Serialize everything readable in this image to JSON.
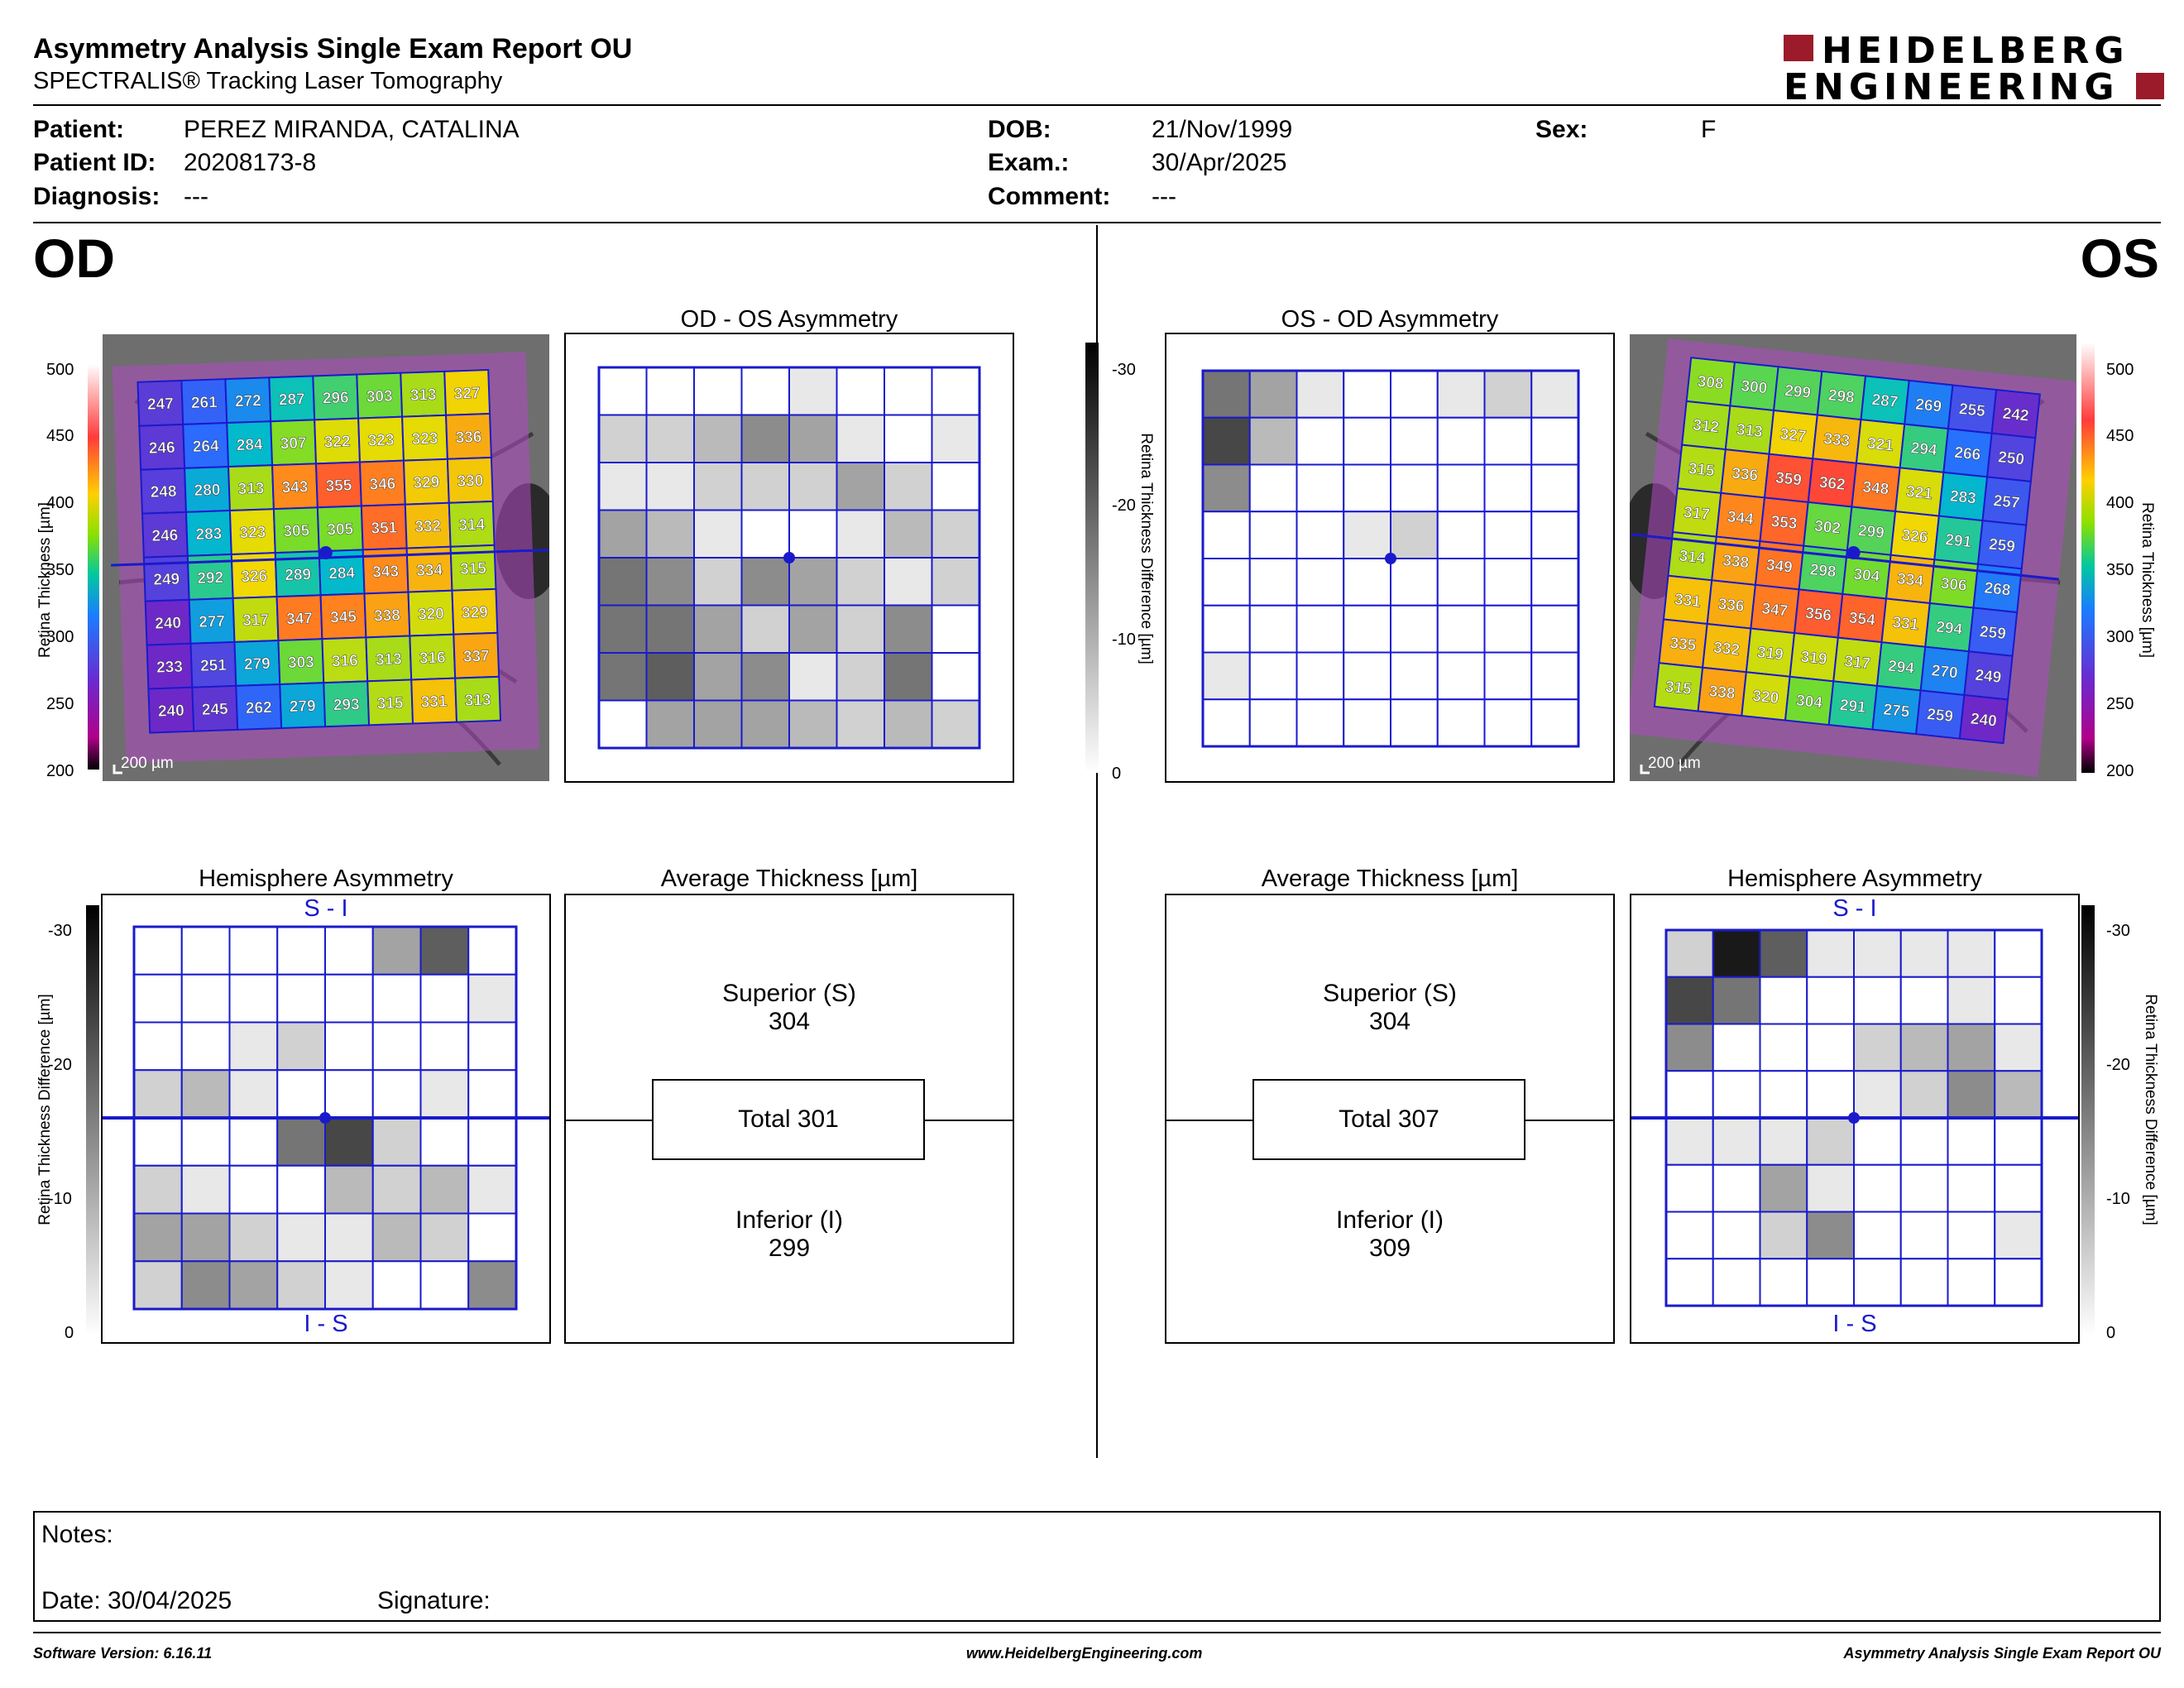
{
  "header": {
    "title": "Asymmetry Analysis Single Exam Report OU",
    "subtitle": "SPECTRALIS® Tracking Laser Tomography",
    "logo_line1": "HEIDELBERG",
    "logo_line2": "ENGINEERING"
  },
  "patient": {
    "patient_label": "Patient:",
    "patient_value": "PEREZ MIRANDA, CATALINA",
    "id_label": "Patient ID:",
    "id_value": "20208173-8",
    "diagnosis_label": "Diagnosis:",
    "diagnosis_value": "---",
    "dob_label": "DOB:",
    "dob_value": "21/Nov/1999",
    "exam_label": "Exam.:",
    "exam_value": "30/Apr/2025",
    "comment_label": "Comment:",
    "comment_value": "---",
    "sex_label": "Sex:",
    "sex_value": "F"
  },
  "od": {
    "eye": "OD",
    "thickness_scale": {
      "label": "Retina  Thickness [µm]",
      "ticks": [
        "500",
        "450",
        "400",
        "350",
        "300",
        "250",
        "200"
      ]
    },
    "scale_bar": "200 µm",
    "grid_values": [
      [
        247,
        261,
        272,
        287,
        296,
        303,
        313,
        327
      ],
      [
        246,
        264,
        284,
        307,
        322,
        323,
        323,
        336
      ],
      [
        248,
        280,
        313,
        343,
        355,
        346,
        329,
        330
      ],
      [
        246,
        283,
        323,
        305,
        305,
        351,
        332,
        314
      ],
      [
        249,
        292,
        326,
        289,
        284,
        343,
        334,
        315
      ],
      [
        240,
        277,
        317,
        347,
        345,
        338,
        320,
        329
      ],
      [
        233,
        251,
        279,
        303,
        316,
        313,
        316,
        337
      ],
      [
        240,
        245,
        262,
        279,
        293,
        315,
        331,
        313
      ]
    ],
    "asym_title": "OD - OS Asymmetry",
    "asym_shades": [
      [
        0,
        0,
        0,
        0,
        1,
        0,
        0,
        0
      ],
      [
        2,
        2,
        3,
        5,
        4,
        1,
        0,
        1
      ],
      [
        1,
        1,
        2,
        2,
        2,
        4,
        2,
        0
      ],
      [
        4,
        3,
        1,
        0,
        0,
        1,
        3,
        2
      ],
      [
        6,
        5,
        2,
        5,
        4,
        2,
        1,
        2
      ],
      [
        6,
        6,
        4,
        2,
        4,
        2,
        5,
        0
      ],
      [
        6,
        7,
        4,
        5,
        1,
        2,
        6,
        0
      ],
      [
        0,
        4,
        4,
        4,
        3,
        2,
        3,
        2
      ]
    ],
    "hemi_title": "Hemisphere Asymmetry",
    "hemi_top": "S - I",
    "hemi_bottom": "I - S",
    "hemi_scale": {
      "label": "Retina Thickness Difference [µm]",
      "ticks": [
        "-30",
        "-20",
        "-10",
        "0"
      ]
    },
    "hemi_shades": [
      [
        0,
        0,
        0,
        0,
        0,
        4,
        7,
        0
      ],
      [
        0,
        0,
        0,
        0,
        0,
        0,
        0,
        1
      ],
      [
        0,
        0,
        1,
        2,
        0,
        0,
        0,
        0
      ],
      [
        2,
        3,
        1,
        0,
        0,
        0,
        1,
        0
      ],
      [
        0,
        0,
        0,
        6,
        8,
        2,
        0,
        0
      ],
      [
        2,
        1,
        0,
        0,
        3,
        2,
        3,
        1
      ],
      [
        4,
        4,
        2,
        1,
        1,
        3,
        2,
        0
      ],
      [
        2,
        5,
        4,
        2,
        1,
        0,
        0,
        5
      ]
    ],
    "avg_title": "Average Thickness [µm]",
    "superior_label": "Superior (S)",
    "superior_value": "304",
    "total_label": "Total 301",
    "inferior_label": "Inferior (I)",
    "inferior_value": "299"
  },
  "os": {
    "eye": "OS",
    "thickness_scale": {
      "label": "Retina  Thickness [µm]",
      "ticks": [
        "500",
        "450",
        "400",
        "350",
        "300",
        "250",
        "200"
      ]
    },
    "scale_bar": "200 µm",
    "grid_values": [
      [
        308,
        300,
        299,
        298,
        287,
        269,
        255,
        242
      ],
      [
        312,
        313,
        327,
        333,
        321,
        294,
        266,
        250
      ],
      [
        315,
        336,
        359,
        362,
        348,
        321,
        283,
        257
      ],
      [
        317,
        344,
        353,
        302,
        299,
        326,
        291,
        259
      ],
      [
        314,
        338,
        349,
        298,
        304,
        334,
        306,
        268
      ],
      [
        331,
        336,
        347,
        356,
        354,
        331,
        294,
        259
      ],
      [
        335,
        332,
        319,
        319,
        317,
        294,
        270,
        249
      ],
      [
        315,
        338,
        320,
        304,
        291,
        275,
        259,
        240
      ]
    ],
    "asym_title": "OS - OD Asymmetry",
    "asym_shades": [
      [
        6,
        4,
        1,
        0,
        0,
        1,
        2,
        1
      ],
      [
        8,
        3,
        0,
        0,
        0,
        0,
        0,
        0
      ],
      [
        5,
        0,
        0,
        0,
        0,
        0,
        0,
        0
      ],
      [
        0,
        0,
        0,
        1,
        2,
        0,
        0,
        0
      ],
      [
        0,
        0,
        0,
        0,
        0,
        0,
        0,
        0
      ],
      [
        0,
        0,
        0,
        0,
        0,
        0,
        0,
        0
      ],
      [
        1,
        0,
        0,
        0,
        0,
        0,
        0,
        0
      ],
      [
        0,
        0,
        0,
        0,
        0,
        0,
        0,
        0
      ]
    ],
    "hemi_title": "Hemisphere Asymmetry",
    "hemi_top": "S - I",
    "hemi_bottom": "I - S",
    "hemi_scale": {
      "label": "Retina Thickness Difference [µm]",
      "ticks": [
        "-30",
        "-20",
        "-10",
        "0"
      ]
    },
    "hemi_shades": [
      [
        2,
        10,
        7,
        1,
        1,
        1,
        1,
        0
      ],
      [
        8,
        6,
        0,
        0,
        0,
        0,
        1,
        0
      ],
      [
        5,
        0,
        0,
        0,
        2,
        3,
        4,
        1
      ],
      [
        0,
        0,
        0,
        0,
        1,
        2,
        5,
        3
      ],
      [
        1,
        1,
        1,
        2,
        0,
        0,
        0,
        0
      ],
      [
        0,
        0,
        4,
        1,
        0,
        0,
        0,
        0
      ],
      [
        0,
        0,
        2,
        5,
        0,
        0,
        0,
        1
      ],
      [
        0,
        0,
        0,
        0,
        0,
        0,
        0,
        0
      ]
    ],
    "avg_title": "Average Thickness [µm]",
    "superior_label": "Superior (S)",
    "superior_value": "304",
    "total_label": "Total 307",
    "inferior_label": "Inferior (I)",
    "inferior_value": "309"
  },
  "diff_scale": {
    "label": "Retina Thickness Difference [µm]",
    "ticks": [
      "-30",
      "-20",
      "-10",
      "0"
    ]
  },
  "notes": {
    "notes_label": "Notes:",
    "date_label": "Date: 30/04/2025",
    "signature_label": "Signature:"
  },
  "footer": {
    "software": "Software Version: 6.16.11",
    "website": "www.HeidelbergEngineering.com",
    "report_name": "Asymmetry Analysis Single Exam Report OU"
  },
  "colors": {
    "grid_line": "#1a1acc",
    "brand_red": "#9b1b2a"
  }
}
